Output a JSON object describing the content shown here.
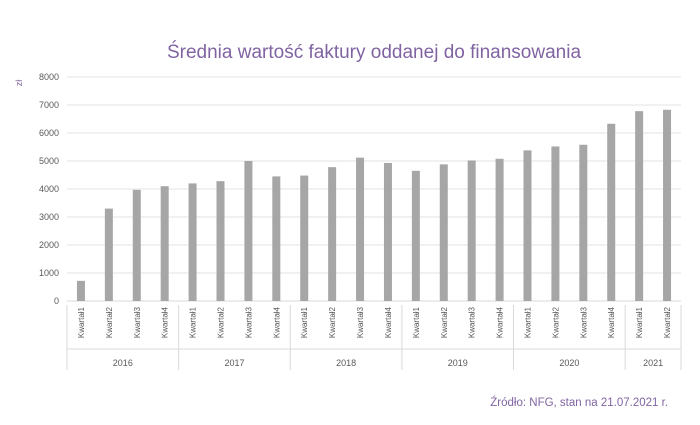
{
  "chart_data": {
    "type": "bar",
    "title": "Średnia wartość faktury oddanej do finansowania",
    "ylabel": "zł",
    "xlabel": "",
    "ylim": [
      0,
      8000
    ],
    "yticks": [
      0,
      1000,
      2000,
      3000,
      4000,
      5000,
      6000,
      7000,
      8000
    ],
    "grid": true,
    "legend": "none",
    "colors": {
      "bar": "#a6a6a6",
      "grid": "#e3e3e3",
      "title": "#8064a2",
      "axis": "#d9d9d9"
    },
    "groups": [
      {
        "year": "2016",
        "categories": [
          "Kwartał1",
          "Kwartał2",
          "Kwartał3",
          "Kwartał4"
        ],
        "values": [
          720,
          3300,
          3970,
          4100
        ]
      },
      {
        "year": "2017",
        "categories": [
          "Kwartał1",
          "Kwartał2",
          "Kwartał3",
          "Kwartał4"
        ],
        "values": [
          4200,
          4280,
          5000,
          4450
        ]
      },
      {
        "year": "2018",
        "categories": [
          "Kwartał1",
          "Kwartał2",
          "Kwartał3",
          "Kwartał4"
        ],
        "values": [
          4480,
          4780,
          5120,
          4930
        ]
      },
      {
        "year": "2019",
        "categories": [
          "Kwartał1",
          "Kwartał2",
          "Kwartał3",
          "Kwartał4"
        ],
        "values": [
          4650,
          4880,
          5020,
          5080
        ]
      },
      {
        "year": "2020",
        "categories": [
          "Kwartał1",
          "Kwartał2",
          "Kwartał3",
          "Kwartał4"
        ],
        "values": [
          5380,
          5520,
          5580,
          6330
        ]
      },
      {
        "year": "2021",
        "categories": [
          "Kwartał1",
          "Kwartał2"
        ],
        "values": [
          6780,
          6830
        ]
      }
    ]
  },
  "source": "Źródło:  NFG, stan na 21.07.2021  r."
}
